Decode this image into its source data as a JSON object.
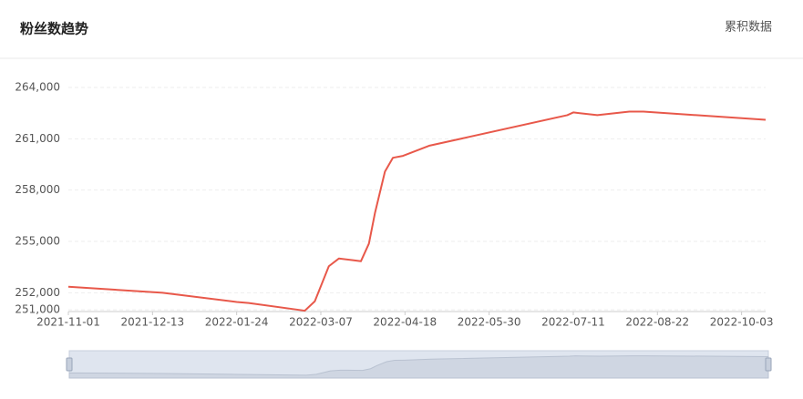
{
  "header": {
    "title": "粉丝数趋势",
    "link": "累积数据"
  },
  "chart_data": {
    "type": "line",
    "x": [
      "2021-11-01",
      "2021-12-18",
      "2022-01-24",
      "2022-01-30",
      "2022-02-27",
      "2022-03-04",
      "2022-03-11",
      "2022-03-16",
      "2022-03-23",
      "2022-03-27",
      "2022-03-31",
      "2022-04-03",
      "2022-04-08",
      "2022-04-12",
      "2022-04-17",
      "2022-04-30",
      "2022-07-08",
      "2022-07-11",
      "2022-07-23",
      "2022-08-08",
      "2022-08-15",
      "2022-10-15"
    ],
    "series": [
      {
        "name": "粉丝数",
        "color": "#e8584a",
        "values": [
          252350,
          252000,
          251460,
          251400,
          250950,
          251500,
          253550,
          254000,
          253900,
          253840,
          254870,
          256650,
          259080,
          259890,
          260000,
          260590,
          262380,
          262540,
          262380,
          262590,
          262590,
          262110
        ]
      }
    ],
    "xlim": [
      "2021-11-01",
      "2022-10-15"
    ],
    "xticks": [
      "2021-11-01",
      "2021-12-13",
      "2022-01-24",
      "2022-03-07",
      "2022-04-18",
      "2022-05-30",
      "2022-07-11",
      "2022-08-22",
      "2022-10-03"
    ],
    "ylim": [
      250900,
      264000
    ],
    "yticks": [
      {
        "value": 251000,
        "label": "251,000"
      },
      {
        "value": 252000,
        "label": "252,000"
      },
      {
        "value": 255000,
        "label": "255,000"
      },
      {
        "value": 258000,
        "label": "258,000"
      },
      {
        "value": 261000,
        "label": "261,000"
      },
      {
        "value": 264000,
        "label": "264,000"
      }
    ],
    "grid": true
  }
}
